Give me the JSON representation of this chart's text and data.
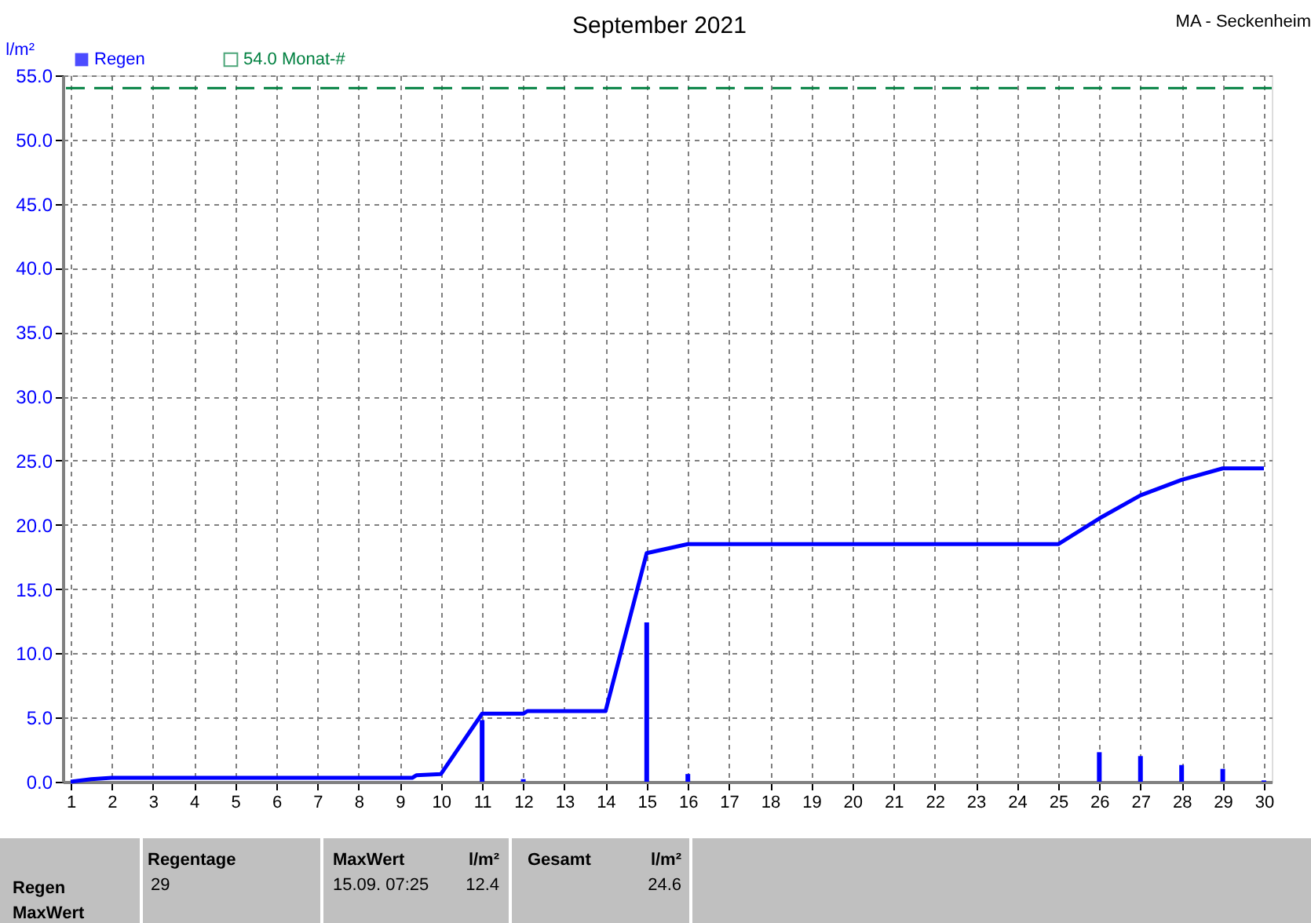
{
  "chart_data": {
    "type": "line",
    "title": "September 2021",
    "ylabel": "l/m²",
    "xlim": [
      1,
      30
    ],
    "xticks": [
      1,
      2,
      3,
      4,
      5,
      6,
      7,
      8,
      9,
      10,
      11,
      12,
      13,
      14,
      15,
      16,
      17,
      18,
      19,
      20,
      21,
      22,
      23,
      24,
      25,
      26,
      27,
      28,
      29,
      30
    ],
    "ylim": [
      0,
      55
    ],
    "yticks": [
      {
        "value": 0,
        "label": "0.0"
      },
      {
        "value": 5,
        "label": "5.0"
      },
      {
        "value": 10,
        "label": "10.0"
      },
      {
        "value": 15,
        "label": "15.0"
      },
      {
        "value": 20,
        "label": "20.0"
      },
      {
        "value": 25,
        "label": "25.0"
      },
      {
        "value": 30,
        "label": "30.0"
      },
      {
        "value": 35,
        "label": "35.0"
      },
      {
        "value": 40,
        "label": "40.0"
      },
      {
        "value": 45,
        "label": "45.0"
      },
      {
        "value": 50,
        "label": "50.0"
      },
      {
        "value": 55,
        "label": "55.0"
      }
    ],
    "grid": true,
    "legend": "top left",
    "series": [
      {
        "name": "Regen",
        "type": "bar",
        "color": "#0000ff",
        "x": [
          11,
          12,
          15,
          16,
          26,
          27,
          28,
          29,
          30
        ],
        "values": [
          4.8,
          0.2,
          12.4,
          0.6,
          2.3,
          2.0,
          1.3,
          1.0,
          0.1
        ]
      },
      {
        "color": "#0000ff",
        "line_style": "solid",
        "x": [
          1,
          1.5,
          2,
          9.3,
          9.4,
          10,
          11,
          12,
          12.1,
          14,
          15,
          16,
          25,
          26,
          27,
          28,
          29,
          30
        ],
        "values": [
          0,
          0.2,
          0.3,
          0.3,
          0.5,
          0.6,
          5.3,
          5.3,
          5.5,
          5.5,
          17.8,
          18.5,
          18.5,
          20.5,
          22.3,
          23.5,
          24.4,
          24.4
        ]
      }
    ],
    "ref_lines": [
      {
        "axis": "y",
        "value": 54,
        "label": "54.0 Monat-#",
        "color": "#008040",
        "line_style": "dashed"
      }
    ],
    "annotations": [
      "MA - Seckenheim",
      "Regen",
      "MaxWert",
      "Regentage",
      "29",
      "MaxWert",
      "l/m²",
      "15.09.  07:25",
      "12.4",
      "Gesamt",
      "l/m²",
      "24.6"
    ]
  }
}
